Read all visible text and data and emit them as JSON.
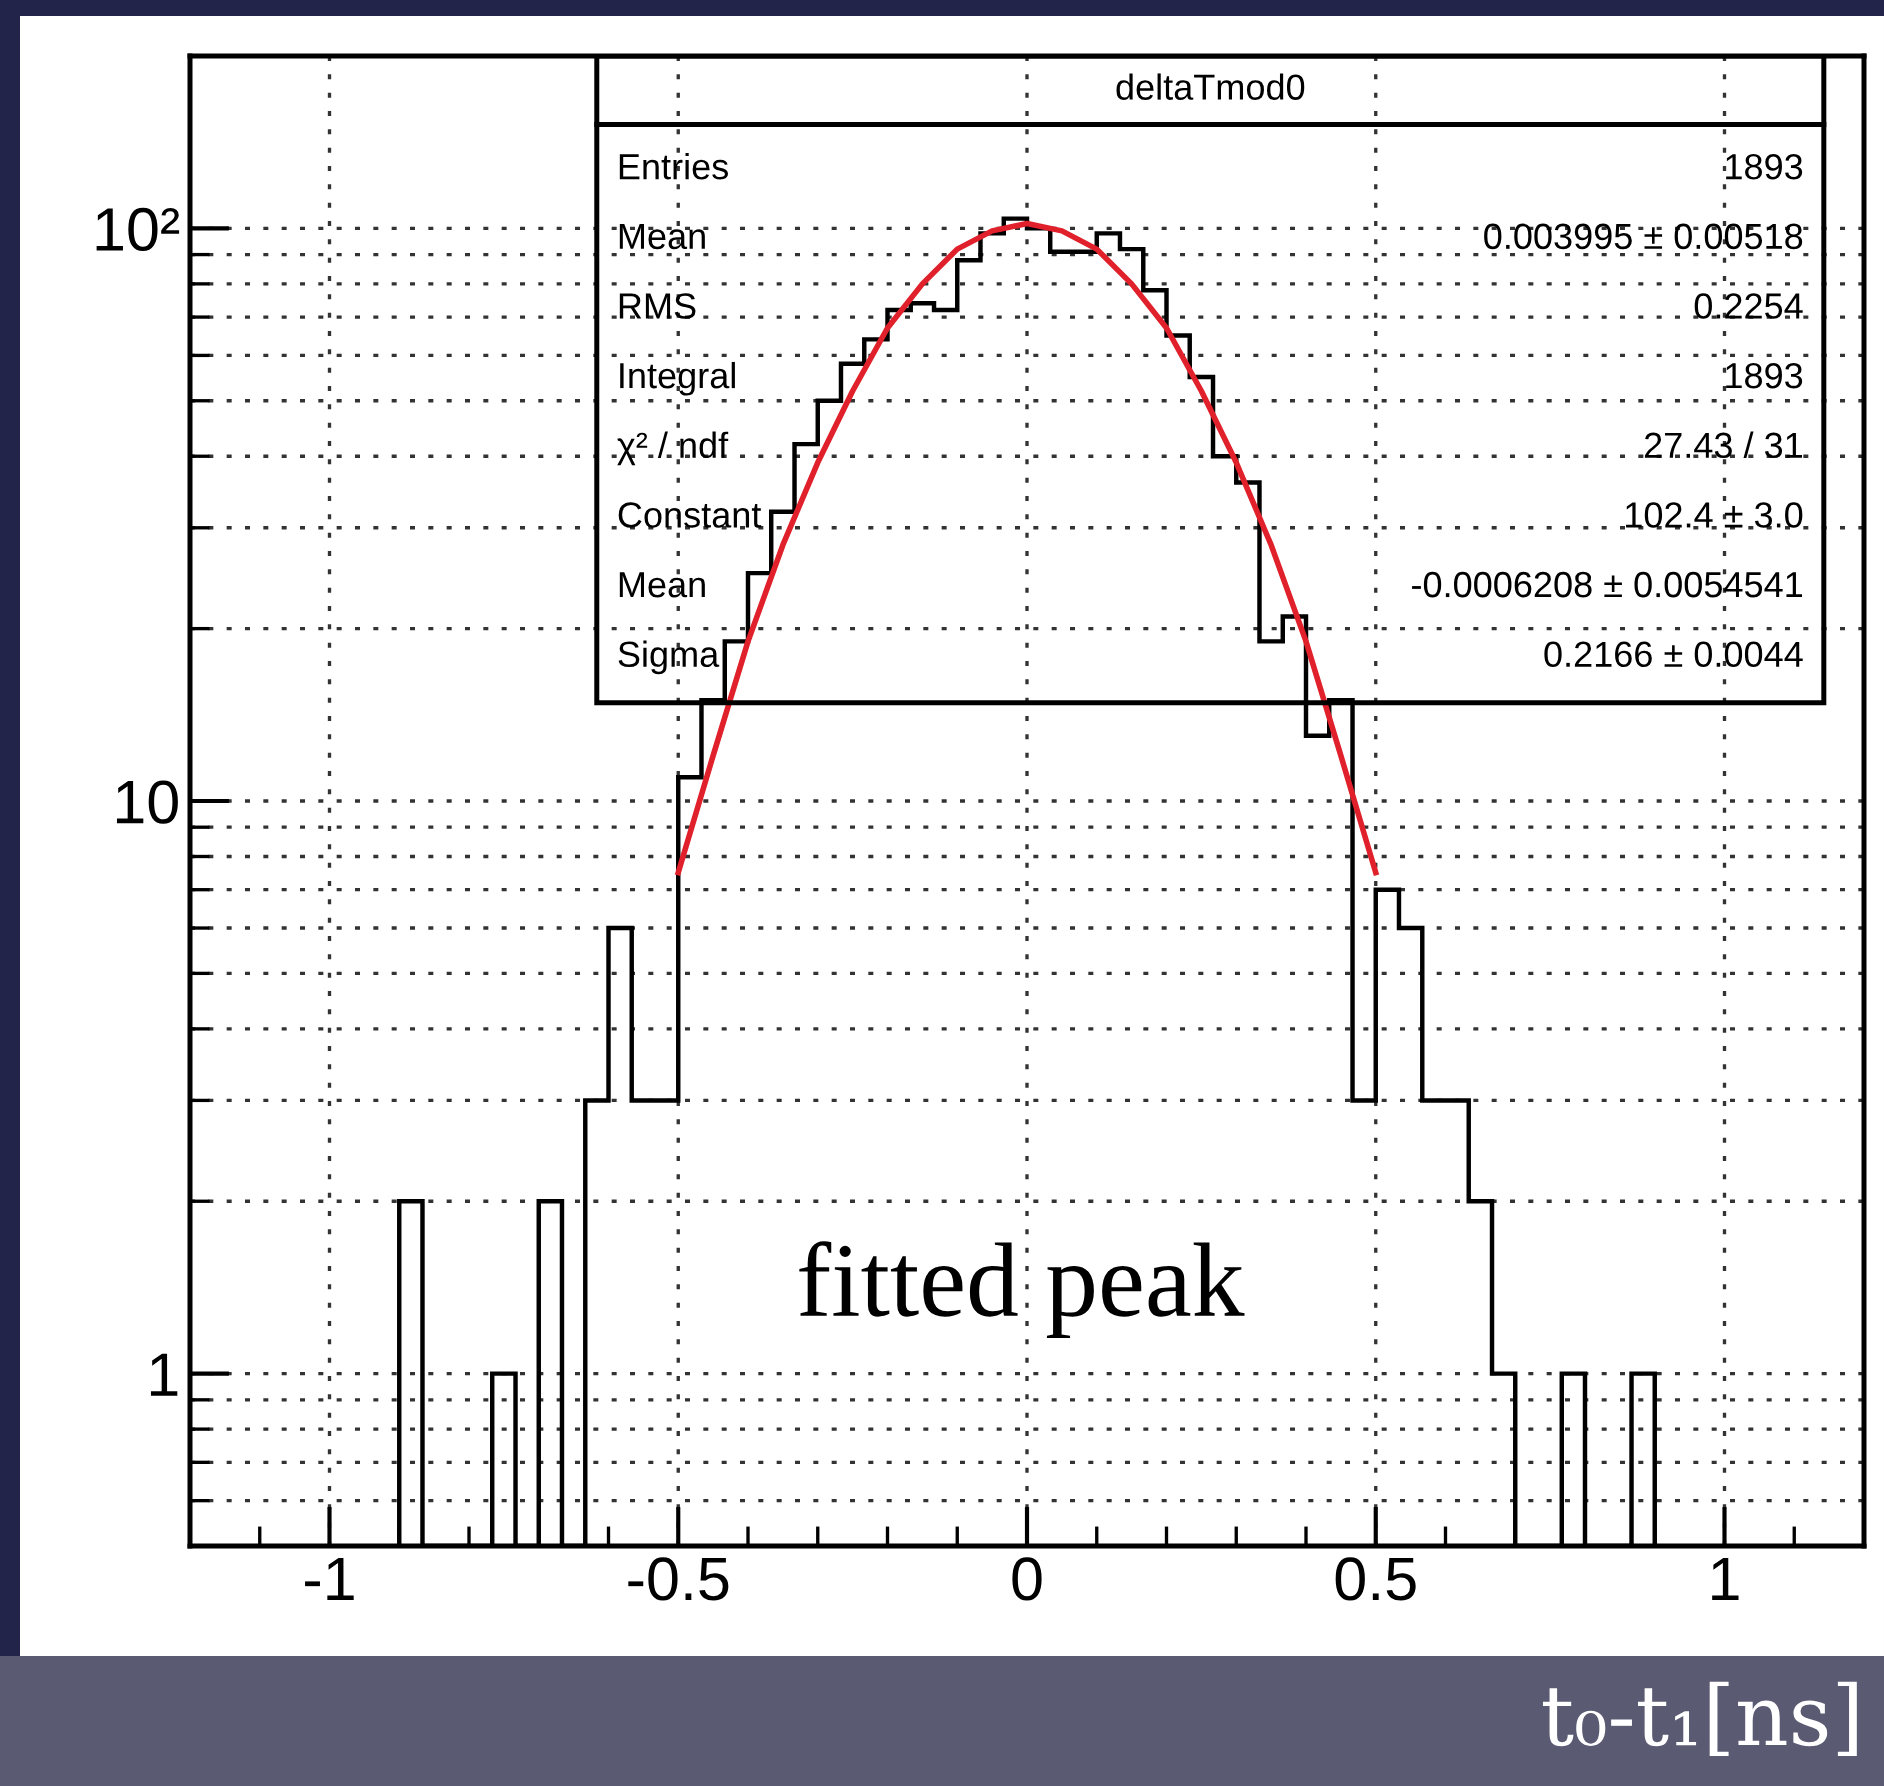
{
  "chart_data": {
    "type": "histogram",
    "bins": [
      -0.9,
      -0.8667,
      -0.8333,
      -0.8,
      -0.7667,
      -0.7333,
      -0.7,
      -0.6667,
      -0.6333,
      -0.6,
      -0.5667,
      -0.5333,
      -0.5,
      -0.4667,
      -0.4333,
      -0.4,
      -0.3667,
      -0.3333,
      -0.3,
      -0.2667,
      -0.2333,
      -0.2,
      -0.1667,
      -0.1333,
      -0.1,
      -0.0667,
      -0.0333,
      0,
      0.0333,
      0.0667,
      0.1,
      0.1333,
      0.1667,
      0.2,
      0.2333,
      0.2667,
      0.3,
      0.3333,
      0.3667,
      0.4,
      0.4333,
      0.4667,
      0.5,
      0.5333,
      0.5667,
      0.6,
      0.6333,
      0.6667,
      0.7,
      0.7333,
      0.7667,
      0.8,
      0.8333,
      0.8667,
      0.9
    ],
    "values": [
      2,
      null,
      null,
      null,
      1,
      null,
      2,
      null,
      3,
      6,
      3,
      3,
      11,
      15,
      19,
      25,
      32,
      42,
      50,
      58,
      64,
      72,
      74,
      72,
      88,
      98,
      104,
      100,
      91,
      91,
      98,
      92,
      78,
      65,
      55,
      40,
      36,
      19,
      21,
      13,
      15,
      3,
      7,
      6,
      3,
      3,
      2,
      1,
      null,
      null,
      1,
      null,
      null,
      1
    ],
    "color": "#000000",
    "series": [
      {
        "type": "line",
        "color": "#e0202a",
        "x": [
          -0.5,
          -0.45,
          -0.4,
          -0.35,
          -0.3,
          -0.25,
          -0.2,
          -0.15,
          -0.1,
          -0.05,
          0,
          0.05,
          0.1,
          0.15,
          0.2,
          0.25,
          0.3,
          0.35,
          0.4,
          0.45,
          0.5
        ],
        "values": [
          7.5,
          12,
          19,
          28,
          39,
          52,
          67,
          80,
          92,
          99,
          102,
          99,
          92,
          80,
          67,
          52,
          39,
          28,
          19,
          12,
          7.5
        ]
      }
    ],
    "xlabel": "t₀-t₁[ns]",
    "xlim": [
      -1.2,
      1.2
    ],
    "xticks": [
      -1,
      -0.5,
      0,
      0.5,
      1
    ],
    "log": true,
    "ylim": [
      0.5,
      200
    ],
    "yticks": [
      1,
      10,
      {
        "value": 100,
        "label": "10²"
      }
    ],
    "grid": true,
    "annotations": [
      "deltaTmod0",
      "Entries",
      "1893",
      "Mean",
      "0.003995 ± 0.00518",
      "RMS",
      "0.2254",
      "Integral",
      "1893",
      "χ² / ndf",
      "27.43 / 31",
      "Constant",
      "102.4 ± 3.0",
      "Mean",
      "-0.0006208 ± 0.0054541",
      "Sigma",
      "0.2166 ± 0.0044",
      "fitted peak"
    ]
  }
}
